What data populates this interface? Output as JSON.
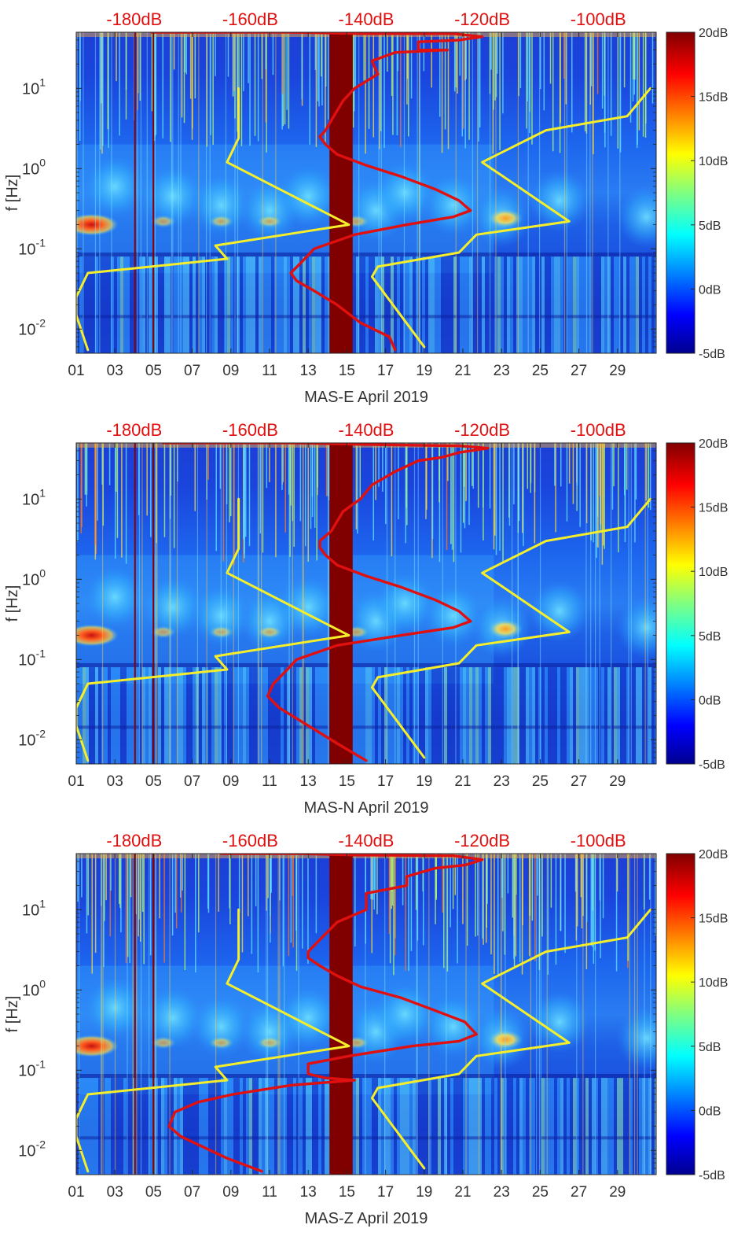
{
  "colors": {
    "power_line": "#e01010",
    "model_line": "#f5ee2a",
    "top_axis_text": "#e01010",
    "axis_text": "#333333",
    "colormap": [
      "#00008f",
      "#0000ff",
      "#0080ff",
      "#00ffff",
      "#80ff80",
      "#ffff00",
      "#ff8000",
      "#ff0000",
      "#800000"
    ]
  },
  "chart_data": [
    {
      "type": "heatmap",
      "title": "",
      "xlabel": "MAS-E April 2019",
      "ylabel": "f [Hz]",
      "x_ticks": [
        "01",
        "03",
        "05",
        "07",
        "09",
        "11",
        "13",
        "15",
        "17",
        "19",
        "21",
        "23",
        "25",
        "27",
        "29"
      ],
      "x_range_days": [
        1,
        31
      ],
      "y_scale": "log",
      "y_range_hz": [
        0.005,
        50
      ],
      "y_ticks": [
        {
          "base": "10",
          "exp": "1"
        },
        {
          "base": "10",
          "exp": "0"
        },
        {
          "base": "10",
          "exp": "-1"
        },
        {
          "base": "10",
          "exp": "-2"
        }
      ],
      "top_axis_ticks": [
        "-180dB",
        "-160dB",
        "-140dB",
        "-120dB",
        "-100dB"
      ],
      "top_axis_range_db": [
        -190,
        -90
      ],
      "colorbar": {
        "labels": [
          "20dB",
          "15dB",
          "10dB",
          "5dB",
          "0dB",
          "-5dB"
        ],
        "range_db": [
          -5,
          20
        ]
      },
      "data_gap_days": [
        14.1,
        15.3
      ],
      "series": [
        {
          "name": "power spectrum (red)",
          "points_db_hz": [
            [
              -177,
              50
            ],
            [
              -153,
              50
            ],
            [
              -141,
              48
            ],
            [
              -125,
              48
            ],
            [
              -120,
              44
            ],
            [
              -124,
              40
            ],
            [
              -131,
              38
            ],
            [
              -131,
              30
            ],
            [
              -126,
              30
            ],
            [
              -135,
              28
            ],
            [
              -139,
              22
            ],
            [
              -138,
              15
            ],
            [
              -142,
              10
            ],
            [
              -144,
              7
            ],
            [
              -146,
              4
            ],
            [
              -147,
              3
            ],
            [
              -148,
              2.5
            ],
            [
              -147,
              2
            ],
            [
              -145,
              1.5
            ],
            [
              -140,
              1.1
            ],
            [
              -134,
              0.8
            ],
            [
              -128,
              0.55
            ],
            [
              -124,
              0.4
            ],
            [
              -122,
              0.3
            ],
            [
              -125,
              0.25
            ],
            [
              -133,
              0.2
            ],
            [
              -142,
              0.15
            ],
            [
              -149,
              0.1
            ],
            [
              -151,
              0.07
            ],
            [
              -153,
              0.05
            ],
            [
              -152,
              0.04
            ],
            [
              -149,
              0.03
            ],
            [
              -145,
              0.02
            ],
            [
              -141,
              0.012
            ],
            [
              -136,
              0.008
            ],
            [
              -135,
              0.0055
            ]
          ]
        },
        {
          "name": "low noise model (yellow)",
          "points_db_hz": [
            [
              -162,
              10
            ],
            [
              -162,
              2.4
            ],
            [
              -164,
              1.2
            ],
            [
              -143,
              0.2
            ],
            [
              -166,
              0.11
            ],
            [
              -164,
              0.075
            ],
            [
              -188,
              0.05
            ],
            [
              -190,
              0.025
            ],
            [
              -190,
              0.02
            ],
            [
              -190,
              0.015
            ],
            [
              -188,
              0.0055
            ]
          ]
        },
        {
          "name": "high noise model (yellow)",
          "points_db_hz": [
            [
              -91,
              10
            ],
            [
              -95,
              4.5
            ],
            [
              -109,
              3
            ],
            [
              -120,
              1.2
            ],
            [
              -105,
              0.22
            ],
            [
              -121,
              0.15
            ],
            [
              -124,
              0.09
            ],
            [
              -138,
              0.06
            ],
            [
              -139,
              0.045
            ],
            [
              -130,
              0.006
            ]
          ]
        }
      ]
    },
    {
      "type": "heatmap",
      "title": "",
      "xlabel": "MAS-N April 2019",
      "ylabel": "f [Hz]",
      "x_ticks": [
        "01",
        "03",
        "05",
        "07",
        "09",
        "11",
        "13",
        "15",
        "17",
        "19",
        "21",
        "23",
        "25",
        "27",
        "29"
      ],
      "x_range_days": [
        1,
        31
      ],
      "y_scale": "log",
      "y_range_hz": [
        0.005,
        50
      ],
      "y_ticks": [
        {
          "base": "10",
          "exp": "1"
        },
        {
          "base": "10",
          "exp": "0"
        },
        {
          "base": "10",
          "exp": "-1"
        },
        {
          "base": "10",
          "exp": "-2"
        }
      ],
      "top_axis_ticks": [
        "-180dB",
        "-160dB",
        "-140dB",
        "-120dB",
        "-100dB"
      ],
      "top_axis_range_db": [
        -190,
        -90
      ],
      "colorbar": {
        "labels": [
          "20dB",
          "15dB",
          "10dB",
          "5dB",
          "0dB",
          "-5dB"
        ],
        "range_db": [
          -5,
          20
        ]
      },
      "data_gap_days": [
        14.1,
        15.3
      ],
      "series": [
        {
          "name": "power spectrum (red)",
          "points_db_hz": [
            [
              -175,
              50
            ],
            [
              -153,
              50
            ],
            [
              -141,
              48
            ],
            [
              -124,
              46
            ],
            [
              -119,
              43
            ],
            [
              -124,
              38
            ],
            [
              -127,
              33
            ],
            [
              -131,
              30
            ],
            [
              -135,
              22
            ],
            [
              -139,
              15
            ],
            [
              -141,
              10
            ],
            [
              -144,
              7
            ],
            [
              -146,
              4
            ],
            [
              -148,
              3
            ],
            [
              -148,
              2.5
            ],
            [
              -147,
              2
            ],
            [
              -145,
              1.5
            ],
            [
              -140,
              1.1
            ],
            [
              -134,
              0.8
            ],
            [
              -128,
              0.55
            ],
            [
              -124,
              0.4
            ],
            [
              -122,
              0.3
            ],
            [
              -125,
              0.25
            ],
            [
              -134,
              0.2
            ],
            [
              -145,
              0.15
            ],
            [
              -152,
              0.1
            ],
            [
              -154,
              0.07
            ],
            [
              -156,
              0.05
            ],
            [
              -157,
              0.035
            ],
            [
              -155,
              0.025
            ],
            [
              -150,
              0.015
            ],
            [
              -145,
              0.009
            ],
            [
              -140,
              0.0055
            ]
          ]
        },
        {
          "name": "low noise model (yellow)",
          "points_db_hz": [
            [
              -162,
              10
            ],
            [
              -162,
              2.4
            ],
            [
              -164,
              1.2
            ],
            [
              -143,
              0.2
            ],
            [
              -166,
              0.11
            ],
            [
              -164,
              0.075
            ],
            [
              -188,
              0.05
            ],
            [
              -190,
              0.025
            ],
            [
              -190,
              0.02
            ],
            [
              -190,
              0.015
            ],
            [
              -188,
              0.0055
            ]
          ]
        },
        {
          "name": "high noise model (yellow)",
          "points_db_hz": [
            [
              -91,
              10
            ],
            [
              -95,
              4.5
            ],
            [
              -109,
              3
            ],
            [
              -120,
              1.2
            ],
            [
              -105,
              0.22
            ],
            [
              -121,
              0.15
            ],
            [
              -124,
              0.09
            ],
            [
              -138,
              0.06
            ],
            [
              -139,
              0.045
            ],
            [
              -130,
              0.006
            ]
          ]
        }
      ]
    },
    {
      "type": "heatmap",
      "title": "",
      "xlabel": "MAS-Z April 2019",
      "ylabel": "f [Hz]",
      "x_ticks": [
        "01",
        "03",
        "05",
        "07",
        "09",
        "11",
        "13",
        "15",
        "17",
        "19",
        "21",
        "23",
        "25",
        "27",
        "29"
      ],
      "x_range_days": [
        1,
        31
      ],
      "y_scale": "log",
      "y_range_hz": [
        0.005,
        50
      ],
      "y_ticks": [
        {
          "base": "10",
          "exp": "1"
        },
        {
          "base": "10",
          "exp": "0"
        },
        {
          "base": "10",
          "exp": "-1"
        },
        {
          "base": "10",
          "exp": "-2"
        }
      ],
      "top_axis_ticks": [
        "-180dB",
        "-160dB",
        "-140dB",
        "-120dB",
        "-100dB"
      ],
      "top_axis_range_db": [
        -190,
        -90
      ],
      "colorbar": {
        "labels": [
          "20dB",
          "15dB",
          "10dB",
          "5dB",
          "0dB",
          "-5dB"
        ],
        "range_db": [
          -5,
          20
        ]
      },
      "data_gap_days": [
        14.1,
        15.3
      ],
      "series": [
        {
          "name": "power spectrum (red)",
          "points_db_hz": [
            [
              -165,
              50
            ],
            [
              -152,
              50
            ],
            [
              -142,
              48
            ],
            [
              -125,
              47
            ],
            [
              -120,
              42
            ],
            [
              -123,
              36
            ],
            [
              -128,
              33
            ],
            [
              -133,
              26
            ],
            [
              -133,
              20
            ],
            [
              -140,
              16
            ],
            [
              -140,
              10
            ],
            [
              -145,
              7
            ],
            [
              -147,
              5
            ],
            [
              -150,
              3
            ],
            [
              -150,
              2.5
            ],
            [
              -148,
              2
            ],
            [
              -145,
              1.5
            ],
            [
              -141,
              1.1
            ],
            [
              -134,
              0.8
            ],
            [
              -128,
              0.55
            ],
            [
              -123,
              0.4
            ],
            [
              -121,
              0.28
            ],
            [
              -124,
              0.23
            ],
            [
              -132,
              0.2
            ],
            [
              -143,
              0.15
            ],
            [
              -150,
              0.12
            ],
            [
              -150,
              0.09
            ],
            [
              -147,
              0.08
            ],
            [
              -142,
              0.075
            ],
            [
              -153,
              0.065
            ],
            [
              -163,
              0.05
            ],
            [
              -169,
              0.04
            ],
            [
              -173,
              0.03
            ],
            [
              -174,
              0.02
            ],
            [
              -172,
              0.015
            ],
            [
              -164,
              0.008
            ],
            [
              -158,
              0.0055
            ]
          ]
        },
        {
          "name": "low noise model (yellow)",
          "points_db_hz": [
            [
              -162,
              10
            ],
            [
              -162,
              2.4
            ],
            [
              -164,
              1.2
            ],
            [
              -143,
              0.2
            ],
            [
              -166,
              0.11
            ],
            [
              -164,
              0.075
            ],
            [
              -188,
              0.05
            ],
            [
              -190,
              0.025
            ],
            [
              -190,
              0.02
            ],
            [
              -190,
              0.015
            ],
            [
              -188,
              0.0055
            ]
          ]
        },
        {
          "name": "high noise model (yellow)",
          "points_db_hz": [
            [
              -91,
              10
            ],
            [
              -95,
              4.5
            ],
            [
              -109,
              3
            ],
            [
              -120,
              1.2
            ],
            [
              -105,
              0.22
            ],
            [
              -121,
              0.15
            ],
            [
              -124,
              0.09
            ],
            [
              -138,
              0.06
            ],
            [
              -139,
              0.045
            ],
            [
              -130,
              0.006
            ]
          ]
        }
      ]
    }
  ]
}
